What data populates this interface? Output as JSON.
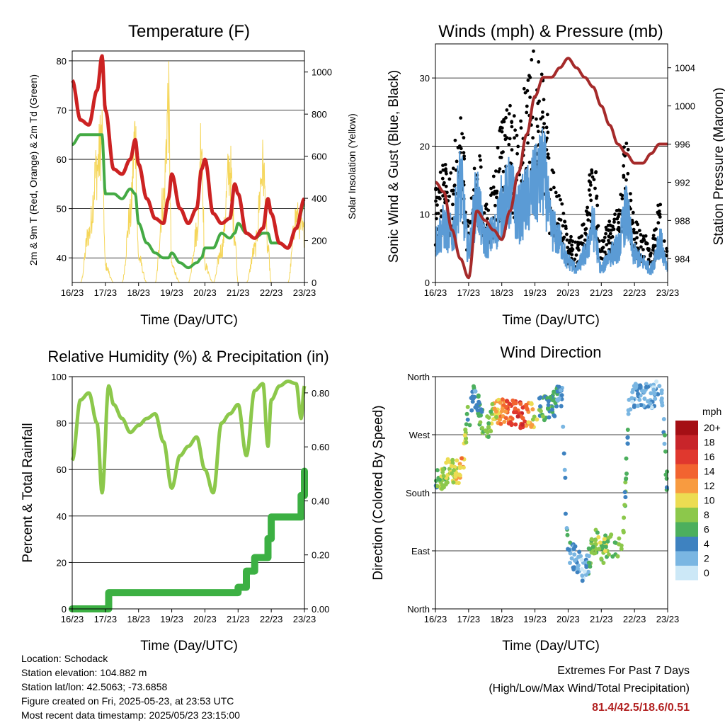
{
  "x_ticks": [
    "16/23",
    "17/23",
    "18/23",
    "19/23",
    "20/23",
    "21/23",
    "22/23",
    "23/23"
  ],
  "panels": {
    "temperature": {
      "title": "Temperature (F)",
      "xlabel": "Time (Day/UTC)",
      "ylabel_left": "2m & 9m T (Red, Orange) & 2m Td (Green)",
      "ylabel_right": "Solar Insolation (Yellow)",
      "left_ticks": [
        "40",
        "50",
        "60",
        "70",
        "80"
      ],
      "right_ticks": [
        "0",
        "200",
        "400",
        "600",
        "800",
        "1000"
      ]
    },
    "winds": {
      "title": "Winds (mph) & Pressure (mb)",
      "xlabel": "Time (Day/UTC)",
      "ylabel_left": "Sonic Wind & Gust (Blue, Black)",
      "ylabel_right": "Station Pressure (Maroon)",
      "left_ticks": [
        "0",
        "10",
        "20",
        "30"
      ],
      "right_ticks": [
        "984",
        "988",
        "992",
        "996",
        "1000",
        "1004"
      ]
    },
    "humidity": {
      "title": "Relative Humidity (%) & Precipitation (in)",
      "xlabel": "Time (Day/UTC)",
      "ylabel_left": "Percent & Total Rainfall",
      "left_ticks": [
        "0",
        "20",
        "40",
        "60",
        "80",
        "100"
      ],
      "right_ticks": [
        "0.00",
        "0.20",
        "0.40",
        "0.60",
        "0.80"
      ]
    },
    "direction": {
      "title": "Wind Direction",
      "xlabel": "Time (Day/UTC)",
      "ylabel_left": "Direction (Colored By Speed)",
      "left_ticks": [
        "North",
        "East",
        "South",
        "West",
        "North"
      ],
      "legend_title": "mph",
      "legend_labels": [
        "20+",
        "18",
        "16",
        "14",
        "12",
        "10",
        "8",
        "6",
        "4",
        "2",
        "0"
      ]
    }
  },
  "colors": {
    "temp": "#cc2222",
    "dewpoint": "#44aa44",
    "solar": "#f5d65a",
    "wind": "#5b9bd5",
    "gust": "#000000",
    "pressure": "#a52a2a",
    "rh": "#8cc84b",
    "precip": "#3cb043",
    "speed_scale": [
      "#a50f15",
      "#c8252a",
      "#e0382e",
      "#f26430",
      "#f89b40",
      "#ecdc52",
      "#8cc84b",
      "#4caf5d",
      "#3e82c0",
      "#7ab6e2",
      "#cce8f7"
    ]
  },
  "chart_data": [
    {
      "type": "line",
      "title": "Temperature (F)",
      "xlabel": "Time (Day/UTC)",
      "ylabel": "2m & 9m T (Red, Orange) & 2m Td (Green)",
      "ylabel_right": "Solar Insolation (Yellow)",
      "x": [
        16.0,
        16.25,
        16.5,
        16.75,
        16.9,
        17.0,
        17.25,
        17.5,
        17.75,
        17.9,
        18.0,
        18.25,
        18.5,
        18.75,
        18.9,
        19.0,
        19.25,
        19.5,
        19.75,
        19.9,
        20.0,
        20.25,
        20.5,
        20.75,
        20.9,
        21.0,
        21.25,
        21.5,
        21.75,
        21.9,
        22.0,
        22.25,
        22.5,
        22.75,
        23.0
      ],
      "series": [
        {
          "values": [
            76,
            68,
            67,
            74,
            81,
            70,
            58,
            57,
            60,
            64,
            59,
            52,
            48,
            47,
            52,
            57,
            50,
            47,
            50,
            58,
            60,
            49,
            47,
            48,
            55,
            53,
            45,
            44,
            46,
            52,
            49,
            43,
            42,
            46,
            52
          ]
        },
        {
          "values": [
            63,
            65,
            65,
            65,
            65,
            53,
            53,
            52,
            54,
            53,
            47,
            43,
            41,
            40,
            40,
            41,
            39,
            38,
            39,
            40,
            42,
            42,
            45,
            44,
            45,
            47,
            45,
            44,
            45,
            45,
            43,
            43,
            42,
            46,
            51
          ]
        },
        {
          "axis": "right",
          "values": [
            0,
            0,
            300,
            700,
            900,
            100,
            0,
            0,
            400,
            900,
            150,
            0,
            0,
            500,
            1080,
            100,
            0,
            0,
            300,
            900,
            100,
            0,
            200,
            700,
            300,
            0,
            0,
            200,
            700,
            200,
            0,
            0,
            0,
            400,
            300
          ]
        }
      ],
      "ylim": [
        35,
        82
      ],
      "ylim_right": [
        0,
        1100
      ]
    },
    {
      "type": "scatter",
      "title": "Winds (mph) & Pressure (mb)",
      "xlabel": "Time (Day/UTC)",
      "ylabel": "Sonic Wind & Gust (Blue, Black)",
      "ylabel_right": "Station Pressure (Maroon)",
      "x": [
        16.0,
        16.25,
        16.5,
        16.75,
        17.0,
        17.25,
        17.5,
        17.75,
        18.0,
        18.25,
        18.5,
        18.75,
        19.0,
        19.25,
        19.5,
        19.75,
        20.0,
        20.25,
        20.5,
        20.75,
        21.0,
        21.25,
        21.5,
        21.75,
        22.0,
        22.25,
        22.5,
        22.75,
        23.0
      ],
      "series": [
        {
          "values": [
            6,
            8,
            7,
            14,
            5,
            12,
            6,
            7,
            11,
            13,
            10,
            12,
            14,
            16,
            8,
            6,
            3,
            2,
            4,
            8,
            2,
            4,
            5,
            10,
            4,
            3,
            2,
            6,
            2
          ]
        },
        {
          "values": [
            12,
            15,
            14,
            25,
            8,
            18,
            10,
            13,
            20,
            22,
            20,
            25,
            30,
            28,
            14,
            11,
            6,
            5,
            8,
            18,
            5,
            8,
            9,
            18,
            8,
            6,
            5,
            10,
            4
          ]
        },
        {
          "axis": "right",
          "values": [
            992,
            991,
            987,
            984,
            982,
            989,
            988,
            987,
            986,
            989,
            993,
            997,
            1001,
            1003,
            1003,
            1004,
            1005,
            1004,
            1003,
            1002,
            1000,
            998,
            996,
            995,
            994,
            994,
            995,
            996,
            996
          ]
        }
      ],
      "ylim": [
        0,
        35
      ],
      "ylim_right": [
        981.5,
        1006.5
      ]
    },
    {
      "type": "line",
      "title": "Relative Humidity (%) & Precipitation (in)",
      "xlabel": "Time (Day/UTC)",
      "ylabel": "Percent & Total Rainfall",
      "x": [
        16.0,
        16.25,
        16.5,
        16.75,
        16.9,
        17.1,
        17.25,
        17.5,
        17.75,
        18.0,
        18.25,
        18.5,
        18.75,
        19.0,
        19.25,
        19.5,
        19.75,
        20.0,
        20.25,
        20.5,
        20.75,
        21.0,
        21.25,
        21.5,
        21.75,
        21.9,
        22.0,
        22.25,
        22.5,
        22.75,
        22.9,
        23.0
      ],
      "series": [
        {
          "values": [
            64,
            90,
            93,
            80,
            50,
            96,
            88,
            82,
            76,
            79,
            82,
            84,
            72,
            52,
            66,
            70,
            74,
            60,
            50,
            80,
            84,
            88,
            66,
            94,
            97,
            70,
            90,
            96,
            98,
            97,
            82,
            96
          ]
        },
        {
          "axis": "right",
          "values": [
            0,
            0,
            0,
            0,
            0,
            0.06,
            0.06,
            0.06,
            0.06,
            0.06,
            0.06,
            0.06,
            0.06,
            0.06,
            0.06,
            0.06,
            0.06,
            0.06,
            0.06,
            0.06,
            0.06,
            0.08,
            0.14,
            0.19,
            0.19,
            0.26,
            0.34,
            0.34,
            0.34,
            0.34,
            0.42,
            0.51
          ]
        }
      ],
      "ylim": [
        0,
        100
      ],
      "ylim_right": [
        0,
        0.86
      ]
    },
    {
      "type": "scatter",
      "title": "Wind Direction",
      "xlabel": "Time (Day/UTC)",
      "ylabel": "Direction (Colored By Speed)",
      "yticks": [
        "North",
        "East",
        "South",
        "West",
        "North"
      ],
      "x": [
        16.0,
        16.2,
        16.4,
        16.6,
        16.8,
        17.0,
        17.2,
        17.4,
        17.6,
        17.8,
        18.0,
        18.3,
        18.6,
        18.9,
        19.2,
        19.5,
        19.8,
        20.0,
        20.2,
        20.5,
        20.8,
        21.0,
        21.3,
        21.6,
        21.9,
        22.2,
        22.5,
        22.8,
        23.0
      ],
      "y_degrees": [
        200,
        200,
        215,
        210,
        220,
        300,
        330,
        290,
        285,
        310,
        305,
        305,
        300,
        300,
        310,
        315,
        330,
        90,
        80,
        60,
        105,
        90,
        100,
        95,
        330,
        330,
        330,
        340,
        195
      ],
      "speed": [
        6,
        8,
        9,
        10,
        12,
        6,
        4,
        6,
        8,
        10,
        13,
        15,
        16,
        11,
        6,
        5,
        3,
        4,
        3,
        2,
        8,
        8,
        7,
        8,
        2,
        3,
        2,
        2,
        5
      ],
      "legend_title": "mph",
      "ylim": [
        0,
        360
      ]
    }
  ],
  "info": [
    "Location: Schodack",
    "Station elevation: 104.882 m",
    "Station lat/lon: 42.5063; -73.6858",
    "Figure created on Fri, 2025-05-23, at 23:53 UTC",
    "Most recent data timestamp: 2025/05/23 23:15:00"
  ],
  "extremes": {
    "title": "Extremes For Past 7 Days",
    "subtitle": "(High/Low/Max Wind/Total Precipitation)",
    "values": "81.4/42.5/18.6/0.51"
  }
}
